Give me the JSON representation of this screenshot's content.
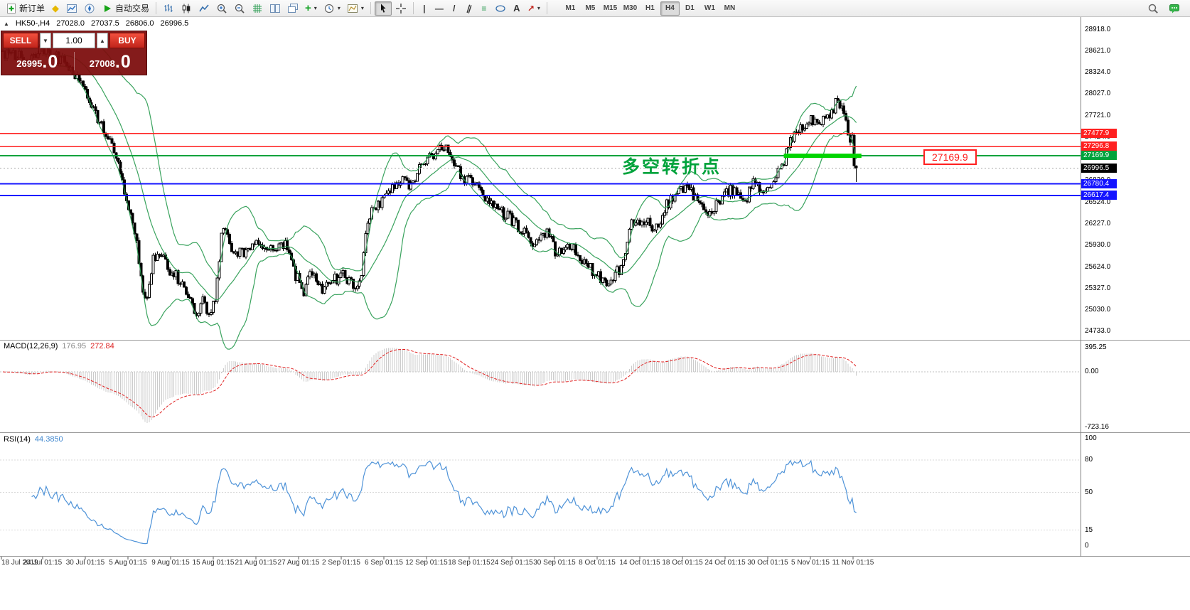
{
  "toolbar": {
    "new_order": "新订单",
    "auto_trading": "自动交易",
    "timeframes": [
      "M1",
      "M5",
      "M15",
      "M30",
      "H1",
      "H4",
      "D1",
      "W1",
      "MN"
    ],
    "active_timeframe": "H4",
    "icon_map": {
      "profile-icon": "◆",
      "add-indicator-icon": "+",
      "caret-icon": "▾",
      "cursor-caret-icon": "▾",
      "vertical-line-icon": "|",
      "horizontal-line-icon": "—",
      "trendline-icon": "/",
      "channel-icon": "∥",
      "fibonacci-icon": "≡",
      "text-tool-icon": "A",
      "arrow-tool-icon": "↗",
      "crosshair-icon": "+"
    }
  },
  "window": {
    "header": {
      "symbol": "HK50-,H4",
      "open": "27028.0",
      "high": "27037.5",
      "low": "26806.0",
      "close": "26996.5"
    },
    "trade": {
      "sell_label": "SELL",
      "buy_label": "BUY",
      "volume": "1.00",
      "sell_price_small": "26995",
      "sell_price_big": ".0",
      "buy_price_small": "27008",
      "buy_price_big": ".0"
    },
    "annotation": {
      "text": "多空转折点"
    },
    "level_label": {
      "text": "27169.9"
    }
  },
  "panels": {
    "macd": {
      "name": "MACD(12,26,9)",
      "value_main": "176.95",
      "value_signal": "272.84",
      "scale": [
        "395.25",
        "0.00",
        "-723.16"
      ]
    },
    "rsi": {
      "name": "RSI(14)",
      "value": "44.3850",
      "scale": [
        "100",
        "80",
        "50",
        "15",
        "0"
      ],
      "levels": [
        80,
        50,
        15
      ]
    }
  },
  "chart_data": {
    "type": "candlestick",
    "symbol": "HK50-",
    "timeframe": "H4",
    "bars": 415,
    "last_bar": {
      "open": 27028.0,
      "high": 27037.5,
      "low": 26806.0,
      "close": 26996.5
    },
    "y_axis_ticks": [
      "28918.0",
      "28621.0",
      "28324.0",
      "28027.0",
      "27721.0",
      "27424.0",
      "27127.0",
      "26830.0",
      "26524.0",
      "26227.0",
      "25930.0",
      "25624.0",
      "25327.0",
      "25030.0",
      "24733.0"
    ],
    "x_axis_dates": [
      "18 Jul 2019",
      "24 Jul 01:15",
      "30 Jul 01:15",
      "5 Aug 01:15",
      "9 Aug 01:15",
      "15 Aug 01:15",
      "21 Aug 01:15",
      "27 Aug 01:15",
      "2 Sep 01:15",
      "6 Sep 01:15",
      "12 Sep 01:15",
      "18 Sep 01:15",
      "24 Sep 01:15",
      "30 Sep 01:15",
      "8 Oct 01:15",
      "14 Oct 01:15",
      "18 Oct 01:15",
      "24 Oct 01:15",
      "30 Oct 01:15",
      "5 Nov 01:15",
      "11 Nov 01:15"
    ],
    "horizontal_levels": [
      {
        "price": 27477.9,
        "label": "27477.9",
        "color": "#ff2020",
        "width": 1.5,
        "style": "solid"
      },
      {
        "price": 27296.8,
        "label": "27296.8",
        "color": "#ff2020",
        "width": 1.5,
        "style": "solid"
      },
      {
        "price": 27169.9,
        "label": "27169.9",
        "color": "#00a33c",
        "width": 2,
        "style": "solid"
      },
      {
        "price": 26996.5,
        "label": "26996.5",
        "color": "#aaaaaa",
        "width": 1,
        "style": "dotted",
        "badge": "#000000"
      },
      {
        "price": 26780.4,
        "label": "26780.4",
        "color": "#1414ff",
        "width": 2,
        "style": "solid"
      },
      {
        "price": 26617.4,
        "label": "26617.4",
        "color": "#1414ff",
        "width": 2,
        "style": "solid"
      }
    ],
    "highlight_segment": {
      "price": 27169.9,
      "from_f": 0.915,
      "to_f": 1.006,
      "color": "#00d400"
    },
    "indicators": [
      {
        "name": "Bollinger Bands",
        "period": 20,
        "deviation": 2,
        "color": "#2f9e55"
      },
      {
        "name": "MACD",
        "fast": 12,
        "slow": 26,
        "signal": 9,
        "current_main": 176.95,
        "current_signal": 272.84
      },
      {
        "name": "RSI",
        "period": 14,
        "current": 44.385
      }
    ],
    "price_waypoints": [
      [
        0,
        28600
      ],
      [
        0.03,
        28520
      ],
      [
        0.05,
        28680
      ],
      [
        0.08,
        28380
      ],
      [
        0.1,
        27950
      ],
      [
        0.118,
        27550
      ],
      [
        0.128,
        27330
      ],
      [
        0.139,
        26870
      ],
      [
        0.146,
        26520
      ],
      [
        0.152,
        26300
      ],
      [
        0.158,
        25900
      ],
      [
        0.163,
        25350
      ],
      [
        0.168,
        25150
      ],
      [
        0.175,
        25700
      ],
      [
        0.185,
        25850
      ],
      [
        0.195,
        25600
      ],
      [
        0.205,
        25480
      ],
      [
        0.215,
        25300
      ],
      [
        0.225,
        25000
      ],
      [
        0.235,
        25150
      ],
      [
        0.242,
        24930
      ],
      [
        0.25,
        25250
      ],
      [
        0.257,
        26150
      ],
      [
        0.268,
        25900
      ],
      [
        0.28,
        25800
      ],
      [
        0.3,
        26000
      ],
      [
        0.315,
        25850
      ],
      [
        0.33,
        25950
      ],
      [
        0.34,
        25600
      ],
      [
        0.352,
        25280
      ],
      [
        0.363,
        25600
      ],
      [
        0.374,
        25300
      ],
      [
        0.385,
        25420
      ],
      [
        0.398,
        25520
      ],
      [
        0.41,
        25350
      ],
      [
        0.42,
        25500
      ],
      [
        0.428,
        26300
      ],
      [
        0.44,
        26500
      ],
      [
        0.455,
        26700
      ],
      [
        0.468,
        26850
      ],
      [
        0.48,
        26750
      ],
      [
        0.493,
        27100
      ],
      [
        0.505,
        27200
      ],
      [
        0.515,
        27330
      ],
      [
        0.528,
        27100
      ],
      [
        0.54,
        26850
      ],
      [
        0.555,
        26800
      ],
      [
        0.568,
        26500
      ],
      [
        0.58,
        26400
      ],
      [
        0.595,
        26300
      ],
      [
        0.61,
        26100
      ],
      [
        0.623,
        25900
      ],
      [
        0.637,
        26100
      ],
      [
        0.65,
        25800
      ],
      [
        0.663,
        25950
      ],
      [
        0.678,
        25750
      ],
      [
        0.69,
        25600
      ],
      [
        0.7,
        25450
      ],
      [
        0.712,
        25400
      ],
      [
        0.725,
        25650
      ],
      [
        0.735,
        26200
      ],
      [
        0.75,
        26300
      ],
      [
        0.765,
        26150
      ],
      [
        0.778,
        26500
      ],
      [
        0.792,
        26650
      ],
      [
        0.806,
        26700
      ],
      [
        0.818,
        26450
      ],
      [
        0.83,
        26380
      ],
      [
        0.843,
        26600
      ],
      [
        0.855,
        26700
      ],
      [
        0.868,
        26500
      ],
      [
        0.88,
        26800
      ],
      [
        0.892,
        26700
      ],
      [
        0.903,
        26850
      ],
      [
        0.913,
        27000
      ],
      [
        0.922,
        27400
      ],
      [
        0.935,
        27550
      ],
      [
        0.947,
        27650
      ],
      [
        0.957,
        27580
      ],
      [
        0.967,
        27720
      ],
      [
        0.977,
        27900
      ],
      [
        0.985,
        27750
      ],
      [
        0.991,
        27500
      ],
      [
        1,
        26996.5
      ]
    ]
  }
}
